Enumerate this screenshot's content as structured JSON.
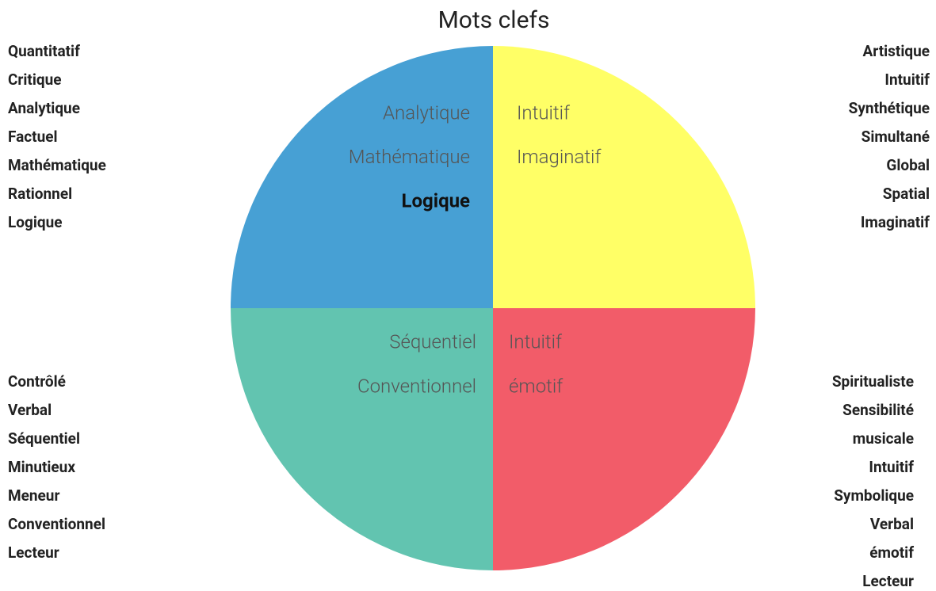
{
  "title": "Mots clefs",
  "quadrants": [
    {
      "inner": [
        "Analytique",
        "Mathématique",
        "Logique"
      ],
      "keywords": [
        "Quantitatif",
        "Critique",
        "Analytique",
        "Factuel",
        "Mathématique",
        "Rationnel",
        "Logique"
      ]
    },
    {
      "inner": [
        "Intuitif",
        "Imaginatif"
      ],
      "keywords": [
        "Artistique",
        "Intuitif",
        "Synthétique",
        "Simultané",
        "Global",
        "Spatial",
        "Imaginatif"
      ]
    },
    {
      "inner": [
        "Séquentiel",
        "Conventionnel"
      ],
      "keywords": [
        "Contrôlé",
        "Verbal",
        "Séquentiel",
        "Minutieux",
        "Meneur",
        "Conventionnel",
        "Lecteur"
      ]
    },
    {
      "inner": [
        "Intuitif",
        "émotif"
      ],
      "keywords": [
        "Spiritualiste",
        "Sensibilité",
        "musicale",
        "Intuitif",
        "Symbolique",
        "Verbal",
        "émotif",
        "Lecteur"
      ]
    }
  ]
}
